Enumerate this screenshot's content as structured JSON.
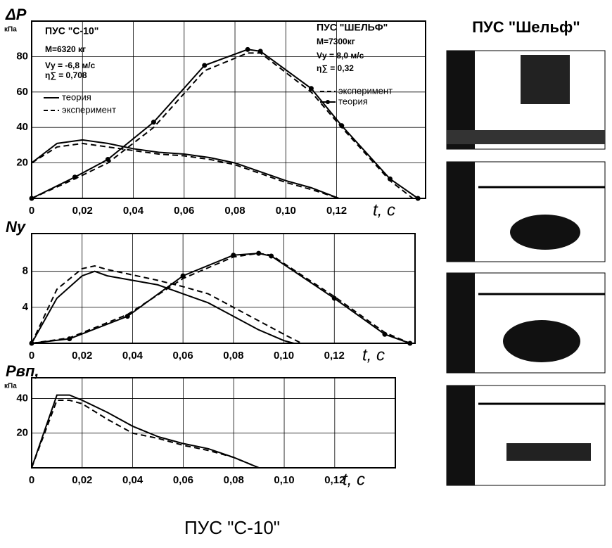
{
  "chart_data": [
    {
      "type": "line",
      "ylabel": "ΔP",
      "ylabel_unit": "кПа",
      "xlabel": "t, c",
      "grid": true,
      "xlim": [
        0,
        0.155
      ],
      "ylim": [
        0,
        100
      ],
      "xticks": [
        0,
        {
          "value": 0.02,
          "label": "0,02"
        },
        {
          "value": 0.04,
          "label": "0,04"
        },
        {
          "value": 0.06,
          "label": "0,06"
        },
        {
          "value": 0.08,
          "label": "0,08"
        },
        {
          "value": 0.1,
          "label": "0,10"
        },
        {
          "value": 0.12,
          "label": "0,12"
        }
      ],
      "yticks": [
        20,
        40,
        60,
        80
      ],
      "annotations": [
        "ПУС \"С-10\"",
        "М=6320 кг",
        "Vу = -6,8 м/с",
        "η∑ = 0,708",
        "ПУС \"ШЕЛЬФ\"",
        "М=7300кг",
        "Vу = 8,0 м/с",
        "η∑ = 0,32"
      ],
      "series": [
        {
          "name": "теория",
          "color": "#000",
          "dash": false,
          "markers": false,
          "x": [
            0,
            0.01,
            0.02,
            0.03,
            0.04,
            0.05,
            0.06,
            0.07,
            0.08,
            0.09,
            0.1,
            0.11,
            0.121
          ],
          "values": [
            20,
            31,
            33,
            31,
            28,
            26,
            25,
            23,
            20,
            15,
            10,
            6,
            0
          ]
        },
        {
          "name": "эксперимент",
          "color": "#000",
          "dash": true,
          "markers": false,
          "x": [
            0,
            0.01,
            0.02,
            0.03,
            0.04,
            0.05,
            0.06,
            0.07,
            0.08,
            0.09,
            0.1,
            0.11,
            0.121
          ],
          "values": [
            20,
            29,
            31,
            29,
            27,
            25,
            24,
            22,
            19,
            14,
            9,
            5,
            0
          ]
        },
        {
          "name": "эксперимент",
          "color": "#000",
          "dash": true,
          "markers": false,
          "x": [
            0,
            0.017,
            0.03,
            0.048,
            0.068,
            0.085,
            0.09,
            0.11,
            0.122,
            0.141,
            0.15
          ],
          "values": [
            0,
            11,
            20,
            40,
            72,
            82,
            82,
            60,
            40,
            10,
            0
          ]
        },
        {
          "name": "теория",
          "color": "#000",
          "dash": false,
          "markers": true,
          "x": [
            0,
            0.017,
            0.03,
            0.048,
            0.068,
            0.085,
            0.09,
            0.11,
            0.122,
            0.141,
            0.152
          ],
          "values": [
            0,
            12,
            22,
            43,
            75,
            84,
            83,
            62,
            41,
            11,
            0
          ]
        }
      ]
    },
    {
      "type": "line",
      "ylabel": "Nу",
      "xlabel": "t, c",
      "grid": true,
      "xlim": [
        0,
        0.152
      ],
      "ylim": [
        0,
        12.2
      ],
      "xticks": [
        0,
        {
          "value": 0.02,
          "label": "0,02"
        },
        {
          "value": 0.04,
          "label": "0,04"
        },
        {
          "value": 0.06,
          "label": "0,06"
        },
        {
          "value": 0.08,
          "label": "0,08"
        },
        {
          "value": 0.1,
          "label": "0,10"
        },
        {
          "value": 0.12,
          "label": "0,12"
        }
      ],
      "yticks": [
        4,
        8
      ],
      "series": [
        {
          "color": "#000",
          "dash": false,
          "markers": false,
          "x": [
            0,
            0.01,
            0.02,
            0.025,
            0.03,
            0.04,
            0.05,
            0.06,
            0.07,
            0.08,
            0.09,
            0.1,
            0.104
          ],
          "values": [
            0,
            5,
            7.5,
            8,
            7.5,
            7,
            6.5,
            5.5,
            4.5,
            3,
            1.5,
            0.3,
            0
          ]
        },
        {
          "color": "#000",
          "dash": true,
          "markers": false,
          "x": [
            0,
            0.01,
            0.02,
            0.025,
            0.03,
            0.04,
            0.05,
            0.06,
            0.07,
            0.08,
            0.09,
            0.1,
            0.107
          ],
          "values": [
            0,
            6,
            8.3,
            8.6,
            8.2,
            7.6,
            7,
            6.3,
            5.5,
            4,
            2.5,
            1,
            0
          ]
        },
        {
          "color": "#000",
          "dash": true,
          "markers": false,
          "x": [
            0,
            0.015,
            0.038,
            0.06,
            0.08,
            0.09,
            0.095,
            0.12,
            0.14,
            0.15
          ],
          "values": [
            0,
            0.6,
            3.2,
            7.2,
            9.6,
            10,
            9.8,
            5.2,
            1.2,
            0
          ]
        },
        {
          "color": "#000",
          "dash": false,
          "markers": true,
          "x": [
            0,
            0.015,
            0.038,
            0.06,
            0.08,
            0.09,
            0.095,
            0.12,
            0.14,
            0.15
          ],
          "values": [
            0,
            0.5,
            3,
            7.5,
            9.8,
            10,
            9.7,
            5,
            1,
            0
          ]
        }
      ]
    },
    {
      "type": "line",
      "ylabel": "Pвп,",
      "ylabel_unit": "кПа",
      "xlabel": "t, c",
      "grid": true,
      "xlim": [
        0,
        0.144
      ],
      "ylim": [
        0,
        52
      ],
      "xticks": [
        0,
        {
          "value": 0.02,
          "label": "0,02"
        },
        {
          "value": 0.04,
          "label": "0,04"
        },
        {
          "value": 0.06,
          "label": "0,06"
        },
        {
          "value": 0.08,
          "label": "0,08"
        },
        {
          "value": 0.1,
          "label": "0,10"
        },
        {
          "value": 0.12,
          "label": "0,12"
        }
      ],
      "yticks": [
        20,
        40
      ],
      "series": [
        {
          "color": "#000",
          "dash": false,
          "markers": false,
          "x": [
            0,
            0.01,
            0.015,
            0.02,
            0.03,
            0.04,
            0.05,
            0.06,
            0.07,
            0.08,
            0.09
          ],
          "values": [
            0,
            42,
            42,
            39,
            32,
            24,
            18,
            14,
            11,
            6,
            0
          ]
        },
        {
          "color": "#000",
          "dash": true,
          "markers": false,
          "x": [
            0,
            0.01,
            0.015,
            0.02,
            0.03,
            0.04,
            0.05,
            0.06,
            0.07,
            0.08,
            0.09
          ],
          "values": [
            0,
            39,
            39,
            37,
            28,
            20,
            17,
            13,
            10,
            6,
            0
          ]
        }
      ]
    }
  ],
  "photos_title": "ПУС \"Шельф\"",
  "caption": "ПУС \"С-10\""
}
